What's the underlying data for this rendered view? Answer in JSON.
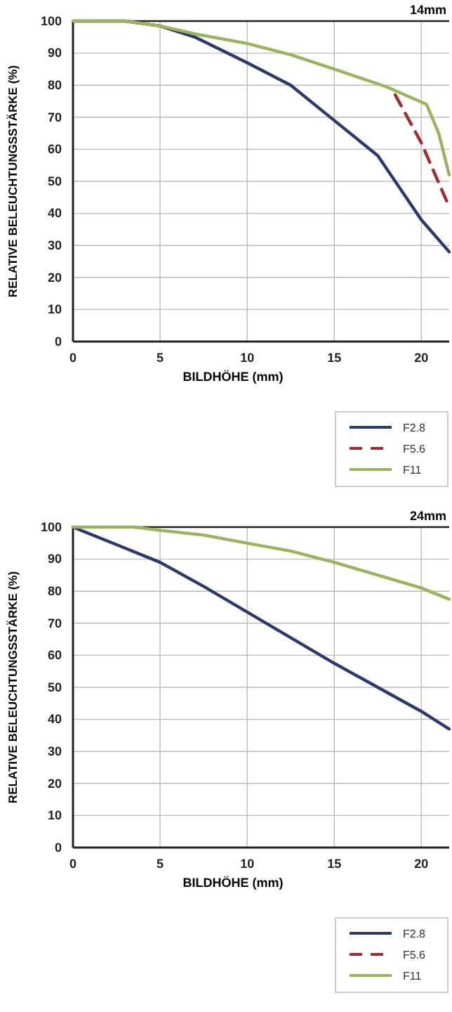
{
  "chart_data": [
    {
      "type": "line",
      "title": "14mm",
      "xlabel": "BILDHÖHE (mm)",
      "ylabel": "RELATIVE BELEUCHTUNGSSTÄRKE (%)",
      "xlim": [
        0,
        21.6
      ],
      "xticks": [
        0,
        5,
        10,
        15,
        20
      ],
      "ylim": [
        0,
        100
      ],
      "yticks": [
        0,
        10,
        20,
        30,
        40,
        50,
        60,
        70,
        80,
        90,
        100
      ],
      "grid": true,
      "legend": "bottom right",
      "series": [
        {
          "name": "F2.8",
          "color": "#2b3a6b",
          "line_style": "solid",
          "x": [
            0,
            3,
            5,
            7,
            10,
            12.5,
            15,
            17.5,
            20,
            21.6
          ],
          "values": [
            100,
            100,
            98.5,
            95,
            87,
            80,
            69,
            58,
            38,
            28
          ]
        },
        {
          "name": "F5.6",
          "color": "#a52a2a",
          "line_style": "dashed",
          "x": [
            18.5,
            20,
            21.6
          ],
          "values": [
            77,
            62,
            42
          ]
        },
        {
          "name": "F11",
          "color": "#9bb35a",
          "line_style": "solid",
          "x": [
            0,
            3,
            5,
            7,
            10,
            12.5,
            15,
            18,
            20.3,
            21,
            21.6
          ],
          "values": [
            100,
            100,
            98.5,
            96,
            93,
            89.5,
            85,
            79.5,
            74,
            65,
            52
          ]
        }
      ]
    },
    {
      "type": "line",
      "title": "24mm",
      "xlabel": "BILDHÖHE (mm)",
      "ylabel": "RELATIVE BELEUCHTUNGSSTÄRKE (%)",
      "xlim": [
        0,
        21.6
      ],
      "xticks": [
        0,
        5,
        10,
        15,
        20
      ],
      "ylim": [
        0,
        100
      ],
      "yticks": [
        0,
        10,
        20,
        30,
        40,
        50,
        60,
        70,
        80,
        90,
        100
      ],
      "grid": true,
      "legend": "bottom right",
      "series": [
        {
          "name": "F2.8",
          "color": "#2b3a6b",
          "line_style": "solid",
          "x": [
            0,
            2.5,
            5,
            7.5,
            10,
            12.5,
            15,
            17.5,
            20,
            21.6
          ],
          "values": [
            100,
            94.5,
            89,
            81.5,
            73.5,
            65.5,
            57.5,
            50,
            42.5,
            37
          ]
        },
        {
          "name": "F5.6",
          "color": "#a52a2a",
          "line_style": "dashed"
        },
        {
          "name": "F11",
          "color": "#9bb35a",
          "line_style": "solid",
          "x": [
            0,
            3.5,
            5,
            7.5,
            10,
            12.5,
            15,
            17.5,
            20,
            21.6
          ],
          "values": [
            100,
            100,
            99,
            97.5,
            95,
            92.5,
            89,
            85,
            81,
            77.5
          ]
        }
      ]
    }
  ]
}
